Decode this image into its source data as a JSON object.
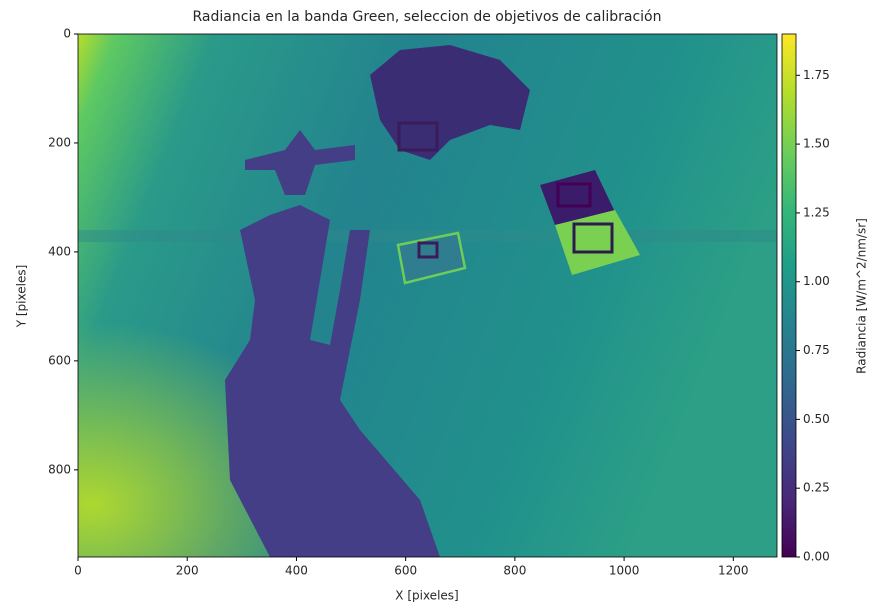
{
  "chart_data": {
    "type": "image",
    "title": "Radiancia en la banda Green, seleccion de objetivos de calibración",
    "xlabel": "X [pixeles]",
    "ylabel": "Y [pixeles]",
    "xlim": [
      0,
      1280
    ],
    "ylim": [
      960,
      0
    ],
    "xticks": [
      0,
      200,
      400,
      600,
      800,
      1000,
      1200
    ],
    "yticks": [
      0,
      200,
      400,
      600,
      800
    ],
    "colorbar": {
      "label": "Radiancia [W/m^2/nm/sr]",
      "colormap": "viridis",
      "lim": [
        0,
        1.9
      ],
      "ticks": [
        {
          "value": 0,
          "label": "0.00"
        },
        {
          "value": 0.25,
          "label": "0.25"
        },
        {
          "value": 0.5,
          "label": "0.50"
        },
        {
          "value": 0.75,
          "label": "0.75"
        },
        {
          "value": 1,
          "label": "1.00"
        },
        {
          "value": 1.25,
          "label": "1.25"
        },
        {
          "value": 1.5,
          "label": "1.50"
        },
        {
          "value": 1.75,
          "label": "1.75"
        }
      ]
    }
  }
}
